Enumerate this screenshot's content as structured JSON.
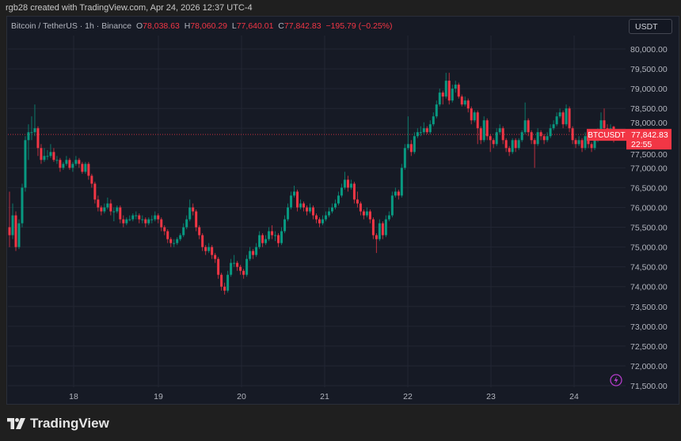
{
  "credit": "rgb28 created with TradingView.com, Apr 24, 2026 12:37 UTC-4",
  "legend": {
    "symbol": "Bitcoin / TetherUS · 1h · Binance",
    "o_label": "O",
    "o": "78,038.63",
    "h_label": "H",
    "h": "78,060.29",
    "l_label": "L",
    "l": "77,640.01",
    "c_label": "C",
    "c": "77,842.83",
    "change": "−195.79 (−0.25%)"
  },
  "currency_button": "USDT",
  "price_tag": {
    "symbol": "BTCUSDT",
    "price": "77,842.83",
    "countdown": "22:55"
  },
  "brand": "TradingView",
  "colors": {
    "up": "#089981",
    "down": "#f23645",
    "background": "#161a25",
    "accent_icon": "#b33cc9"
  },
  "chart_data": {
    "type": "candlestick",
    "interval": "1h",
    "ylim": [
      71460,
      80340
    ],
    "y_ticks": [
      "80,000.00",
      "79,500.00",
      "79,000.00",
      "78,500.00",
      "78,000.00",
      "77,500.00",
      "77,000.00",
      "76,500.00",
      "76,000.00",
      "75,500.00",
      "75,000.00",
      "74,500.00",
      "74,000.00",
      "73,500.00",
      "73,000.00",
      "72,500.00",
      "72,000.00",
      "71,500.00"
    ],
    "x_ticks": [
      "18",
      "19",
      "20",
      "21",
      "22",
      "23",
      "24"
    ],
    "grid": true,
    "last_price": 77842.83,
    "candles": [
      [
        75500,
        76400,
        75000,
        75300
      ],
      [
        75300,
        76100,
        75200,
        75800
      ],
      [
        75800,
        75900,
        74900,
        75000
      ],
      [
        75000,
        75700,
        74950,
        75600
      ],
      [
        75600,
        76600,
        75500,
        76500
      ],
      [
        76500,
        77800,
        76400,
        77700
      ],
      [
        77700,
        78100,
        77200,
        77900
      ],
      [
        77900,
        78300,
        77700,
        77900
      ],
      [
        77900,
        78600,
        77800,
        78000
      ],
      [
        78000,
        78050,
        77300,
        77500
      ],
      [
        77500,
        77600,
        77100,
        77200
      ],
      [
        77200,
        77500,
        77150,
        77300
      ],
      [
        77300,
        77450,
        77200,
        77300
      ],
      [
        77300,
        77600,
        77250,
        77400
      ],
      [
        77400,
        77500,
        77150,
        77200
      ],
      [
        77200,
        77300,
        77100,
        77200
      ],
      [
        77200,
        77250,
        76900,
        77000
      ],
      [
        77000,
        77150,
        76950,
        77100
      ],
      [
        77100,
        77300,
        77050,
        77200
      ],
      [
        77200,
        77250,
        76950,
        77000
      ],
      [
        77000,
        77150,
        76900,
        77100
      ],
      [
        77100,
        77300,
        77050,
        77200
      ],
      [
        77200,
        77250,
        77000,
        77100
      ],
      [
        77100,
        77150,
        76850,
        76900
      ],
      [
        76900,
        77150,
        76850,
        77100
      ],
      [
        77100,
        77150,
        76700,
        76800
      ],
      [
        76800,
        76850,
        76500,
        76600
      ],
      [
        76600,
        76650,
        76100,
        76200
      ],
      [
        76200,
        76300,
        75900,
        76000
      ],
      [
        76000,
        76050,
        75800,
        75900
      ],
      [
        75900,
        76100,
        75850,
        76000
      ],
      [
        76000,
        76250,
        75950,
        76100
      ],
      [
        76100,
        76200,
        75800,
        75900
      ],
      [
        75900,
        76000,
        75650,
        75900
      ],
      [
        75900,
        76050,
        75850,
        76000
      ],
      [
        76000,
        76050,
        75600,
        75700
      ],
      [
        75700,
        75800,
        75500,
        75600
      ],
      [
        75600,
        75750,
        75550,
        75700
      ],
      [
        75700,
        75800,
        75650,
        75700
      ],
      [
        75700,
        75850,
        75650,
        75800
      ],
      [
        75800,
        75900,
        75700,
        75800
      ],
      [
        75800,
        75850,
        75600,
        75700
      ],
      [
        75700,
        75800,
        75600,
        75700
      ],
      [
        75700,
        75750,
        75500,
        75600
      ],
      [
        75600,
        75750,
        75550,
        75700
      ],
      [
        75700,
        75800,
        75600,
        75700
      ],
      [
        75700,
        75900,
        75650,
        75800
      ],
      [
        75800,
        75850,
        75600,
        75700
      ],
      [
        75700,
        75750,
        75400,
        75500
      ],
      [
        75500,
        75550,
        75300,
        75400
      ],
      [
        75400,
        75450,
        75100,
        75200
      ],
      [
        75200,
        75250,
        75000,
        75100
      ],
      [
        75100,
        75200,
        75000,
        75100
      ],
      [
        75100,
        75250,
        75050,
        75200
      ],
      [
        75200,
        75350,
        75150,
        75300
      ],
      [
        75300,
        75600,
        75250,
        75500
      ],
      [
        75500,
        75800,
        75450,
        75700
      ],
      [
        75700,
        76200,
        75650,
        76000
      ],
      [
        76000,
        76100,
        75800,
        75900
      ],
      [
        75900,
        75950,
        75400,
        75500
      ],
      [
        75500,
        75550,
        75200,
        75300
      ],
      [
        75300,
        75350,
        74900,
        75000
      ],
      [
        75000,
        75050,
        74800,
        74900
      ],
      [
        74900,
        75100,
        74850,
        75000
      ],
      [
        75000,
        75050,
        74700,
        74800
      ],
      [
        74800,
        74850,
        74600,
        74700
      ],
      [
        74700,
        74750,
        74200,
        74300
      ],
      [
        74300,
        74350,
        73900,
        74000
      ],
      [
        74000,
        74100,
        73800,
        73900
      ],
      [
        73900,
        74400,
        73850,
        74300
      ],
      [
        74300,
        74700,
        74250,
        74600
      ],
      [
        74600,
        74800,
        74500,
        74600
      ],
      [
        74600,
        74650,
        74400,
        74500
      ],
      [
        74500,
        74550,
        74300,
        74400
      ],
      [
        74400,
        74450,
        74200,
        74300
      ],
      [
        74300,
        74800,
        74250,
        74700
      ],
      [
        74700,
        75000,
        74650,
        74900
      ],
      [
        74900,
        74950,
        74700,
        74800
      ],
      [
        74800,
        75100,
        74750,
        75000
      ],
      [
        75000,
        75400,
        74950,
        75300
      ],
      [
        75300,
        75350,
        75000,
        75100
      ],
      [
        75100,
        75300,
        75050,
        75200
      ],
      [
        75200,
        75500,
        75150,
        75400
      ],
      [
        75400,
        75550,
        75200,
        75300
      ],
      [
        75300,
        75400,
        75150,
        75300
      ],
      [
        75300,
        75350,
        75000,
        75100
      ],
      [
        75100,
        75500,
        75050,
        75400
      ],
      [
        75400,
        75800,
        75350,
        75700
      ],
      [
        75700,
        76100,
        75650,
        76000
      ],
      [
        76000,
        76400,
        75950,
        76300
      ],
      [
        76300,
        76550,
        76250,
        76400
      ],
      [
        76400,
        76450,
        75900,
        76000
      ],
      [
        76000,
        76200,
        75950,
        76100
      ],
      [
        76100,
        76150,
        75900,
        76000
      ],
      [
        76000,
        76050,
        75800,
        75900
      ],
      [
        75900,
        76100,
        75850,
        76000
      ],
      [
        76000,
        76050,
        75700,
        75800
      ],
      [
        75800,
        75850,
        75600,
        75700
      ],
      [
        75700,
        75750,
        75500,
        75600
      ],
      [
        75600,
        75800,
        75550,
        75700
      ],
      [
        75700,
        75900,
        75650,
        75800
      ],
      [
        75800,
        76000,
        75750,
        75900
      ],
      [
        75900,
        76100,
        75850,
        76000
      ],
      [
        76000,
        76200,
        75950,
        76100
      ],
      [
        76100,
        76400,
        76050,
        76300
      ],
      [
        76300,
        76600,
        76250,
        76500
      ],
      [
        76500,
        76900,
        76450,
        76700
      ],
      [
        76700,
        76800,
        76400,
        76500
      ],
      [
        76500,
        76700,
        76450,
        76600
      ],
      [
        76600,
        76650,
        76100,
        76200
      ],
      [
        76200,
        76400,
        76000,
        76100
      ],
      [
        76100,
        76150,
        75800,
        75900
      ],
      [
        75900,
        75950,
        75700,
        75800
      ],
      [
        75800,
        76000,
        75750,
        75900
      ],
      [
        75900,
        75950,
        75600,
        75700
      ],
      [
        75700,
        75750,
        75200,
        75300
      ],
      [
        75300,
        75350,
        74850,
        75200
      ],
      [
        75200,
        75700,
        75150,
        75600
      ],
      [
        75600,
        75650,
        75200,
        75300
      ],
      [
        75300,
        75800,
        75250,
        75700
      ],
      [
        75700,
        75900,
        75650,
        75800
      ],
      [
        75800,
        76400,
        75750,
        76300
      ],
      [
        76300,
        76500,
        76250,
        76400
      ],
      [
        76400,
        76450,
        76200,
        76300
      ],
      [
        76300,
        77100,
        76250,
        77000
      ],
      [
        77000,
        77600,
        76950,
        77500
      ],
      [
        77500,
        78300,
        77450,
        77600
      ],
      [
        77600,
        77700,
        77300,
        77400
      ],
      [
        77400,
        77900,
        77350,
        77800
      ],
      [
        77800,
        78000,
        77750,
        77900
      ],
      [
        77900,
        78050,
        77800,
        77900
      ],
      [
        77900,
        78150,
        77850,
        78000
      ],
      [
        78000,
        78050,
        77850,
        77900
      ],
      [
        77900,
        78200,
        77850,
        78100
      ],
      [
        78100,
        78400,
        78050,
        78300
      ],
      [
        78300,
        78700,
        78250,
        78600
      ],
      [
        78600,
        79000,
        78550,
        78900
      ],
      [
        78900,
        78950,
        78600,
        78800
      ],
      [
        78800,
        79400,
        78750,
        79200
      ],
      [
        79200,
        79400,
        78600,
        78700
      ],
      [
        78700,
        79100,
        78650,
        79000
      ],
      [
        79000,
        79200,
        78900,
        79100
      ],
      [
        79100,
        79150,
        78750,
        78800
      ],
      [
        78800,
        78850,
        78550,
        78600
      ],
      [
        78600,
        78800,
        78550,
        78700
      ],
      [
        78700,
        78750,
        78400,
        78500
      ],
      [
        78500,
        78550,
        78100,
        78200
      ],
      [
        78200,
        78450,
        78150,
        78400
      ],
      [
        78400,
        78450,
        77600,
        78000
      ],
      [
        78000,
        78050,
        77600,
        77700
      ],
      [
        77700,
        78300,
        77650,
        78200
      ],
      [
        78200,
        78250,
        77700,
        77800
      ],
      [
        77800,
        77850,
        77400,
        77700
      ],
      [
        77700,
        77750,
        77500,
        77600
      ],
      [
        77600,
        78000,
        77550,
        77900
      ],
      [
        77900,
        78100,
        77850,
        78000
      ],
      [
        78000,
        78050,
        77600,
        77700
      ],
      [
        77700,
        77750,
        77400,
        77500
      ],
      [
        77500,
        77550,
        77300,
        77400
      ],
      [
        77400,
        77750,
        77350,
        77700
      ],
      [
        77700,
        77750,
        77400,
        77500
      ],
      [
        77500,
        77750,
        77450,
        77700
      ],
      [
        77700,
        77950,
        77650,
        77900
      ],
      [
        77900,
        78650,
        77850,
        78200
      ],
      [
        78200,
        78250,
        77800,
        77900
      ],
      [
        77900,
        77950,
        77600,
        77700
      ],
      [
        77700,
        77750,
        77000,
        77600
      ],
      [
        77600,
        78000,
        77550,
        77900
      ],
      [
        77900,
        77950,
        77700,
        77800
      ],
      [
        77800,
        77850,
        77600,
        77700
      ],
      [
        77700,
        77900,
        77650,
        77800
      ],
      [
        77800,
        78100,
        77750,
        78000
      ],
      [
        78000,
        78200,
        77950,
        78100
      ],
      [
        78100,
        78400,
        78050,
        78300
      ],
      [
        78300,
        78500,
        78250,
        78400
      ],
      [
        78400,
        78450,
        78000,
        78100
      ],
      [
        78100,
        78600,
        78050,
        78500
      ],
      [
        78500,
        78550,
        77900,
        78000
      ],
      [
        78000,
        78050,
        77600,
        77700
      ],
      [
        77700,
        77750,
        77500,
        77600
      ],
      [
        77600,
        77800,
        77550,
        77700
      ],
      [
        77700,
        77750,
        77400,
        77500
      ],
      [
        77500,
        77900,
        77450,
        77800
      ],
      [
        77800,
        77850,
        77500,
        77600
      ],
      [
        77600,
        77650,
        77400,
        77500
      ],
      [
        77500,
        77750,
        77450,
        77700
      ],
      [
        77700,
        78000,
        77650,
        77900
      ],
      [
        77900,
        78400,
        77850,
        78200
      ],
      [
        78200,
        78500,
        77950,
        78000
      ],
      [
        78000,
        78100,
        77800,
        77900
      ],
      [
        77900,
        78100,
        77750,
        78000
      ],
      [
        78038.63,
        78060.29,
        77640.01,
        77842.83
      ]
    ]
  }
}
